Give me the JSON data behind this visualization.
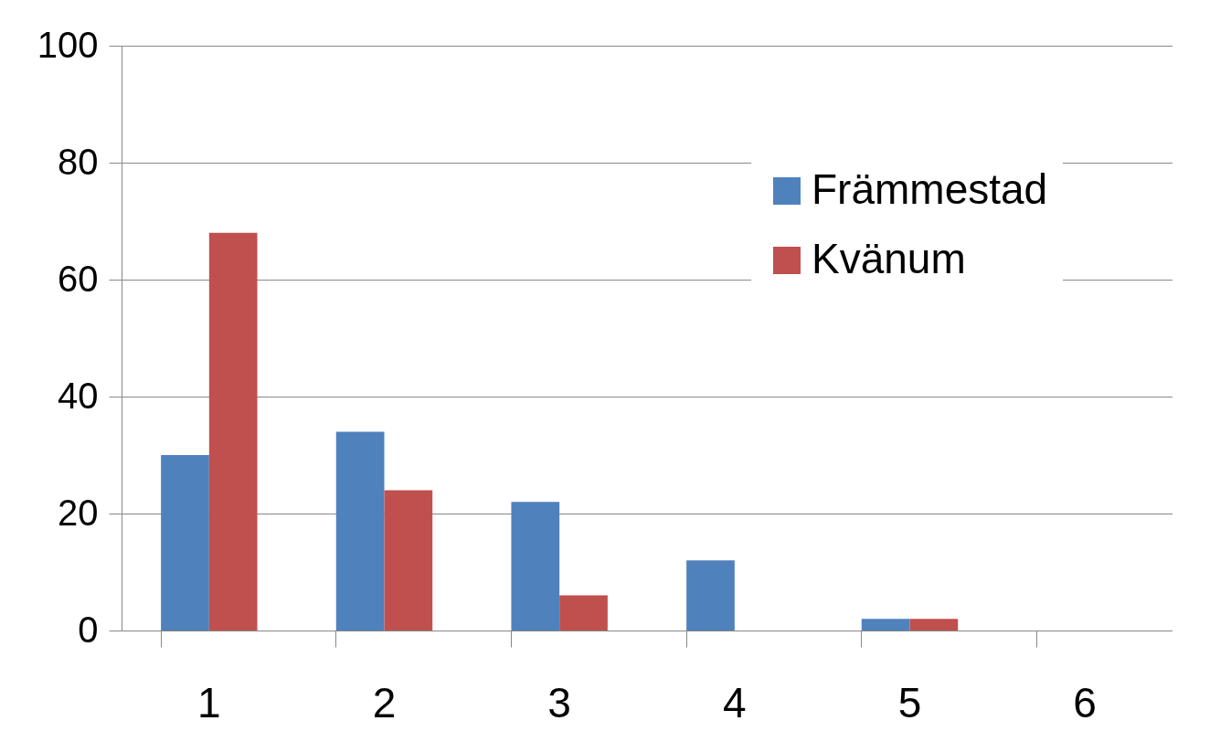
{
  "chart_data": {
    "type": "bar",
    "categories": [
      "1",
      "2",
      "3",
      "4",
      "5",
      "6"
    ],
    "series": [
      {
        "name": "Främmestad",
        "color": "#4f81bd",
        "values": [
          30,
          34,
          22,
          12,
          2,
          0
        ]
      },
      {
        "name": "Kvänum",
        "color": "#c0504d",
        "values": [
          68,
          24,
          6,
          0,
          2,
          0
        ]
      }
    ],
    "ylim": [
      0,
      100
    ],
    "yticks": [
      0,
      20,
      40,
      60,
      80,
      100
    ],
    "grid": "y",
    "legend": "top right"
  }
}
